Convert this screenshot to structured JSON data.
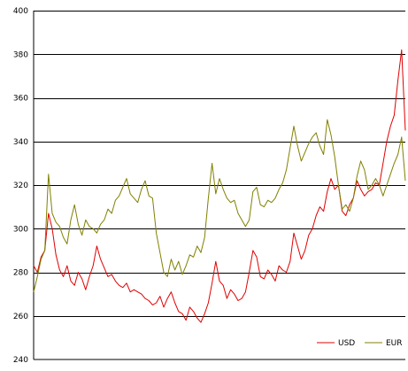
{
  "chart_data": {
    "type": "line",
    "title": "",
    "xlabel": "",
    "ylabel": "",
    "ylim": [
      240,
      400
    ],
    "yticks": [
      240,
      260,
      280,
      300,
      320,
      340,
      360,
      380,
      400
    ],
    "yticks_text": [
      "240",
      "260",
      "280",
      "300",
      "320",
      "340",
      "360",
      "380",
      "400"
    ],
    "grid": "horizontal",
    "legend_position": "bottom-right",
    "x_range": [
      0,
      100
    ],
    "series": [
      {
        "name": "USD",
        "color": "#e00000",
        "points": [
          [
            0,
            283
          ],
          [
            1,
            280
          ],
          [
            2,
            287
          ],
          [
            3,
            290
          ],
          [
            4,
            307
          ],
          [
            5,
            300
          ],
          [
            6,
            288
          ],
          [
            7,
            281
          ],
          [
            8,
            278
          ],
          [
            9,
            283
          ],
          [
            10,
            276
          ],
          [
            11,
            274
          ],
          [
            12,
            280
          ],
          [
            13,
            277
          ],
          [
            14,
            272
          ],
          [
            15,
            278
          ],
          [
            16,
            283
          ],
          [
            17,
            292
          ],
          [
            18,
            286
          ],
          [
            19,
            282
          ],
          [
            20,
            278
          ],
          [
            21,
            279
          ],
          [
            22,
            276
          ],
          [
            23,
            274
          ],
          [
            24,
            273
          ],
          [
            25,
            275
          ],
          [
            26,
            271
          ],
          [
            27,
            272
          ],
          [
            28,
            271
          ],
          [
            29,
            270
          ],
          [
            30,
            268
          ],
          [
            31,
            267
          ],
          [
            32,
            265
          ],
          [
            33,
            266
          ],
          [
            34,
            269
          ],
          [
            35,
            264
          ],
          [
            36,
            268
          ],
          [
            37,
            271
          ],
          [
            38,
            266
          ],
          [
            39,
            262
          ],
          [
            40,
            261
          ],
          [
            41,
            258
          ],
          [
            42,
            264
          ],
          [
            43,
            262
          ],
          [
            44,
            259
          ],
          [
            45,
            257
          ],
          [
            46,
            261
          ],
          [
            47,
            266
          ],
          [
            48,
            275
          ],
          [
            49,
            285
          ],
          [
            50,
            276
          ],
          [
            51,
            274
          ],
          [
            52,
            268
          ],
          [
            53,
            272
          ],
          [
            54,
            270
          ],
          [
            55,
            267
          ],
          [
            56,
            268
          ],
          [
            57,
            271
          ],
          [
            58,
            280
          ],
          [
            59,
            290
          ],
          [
            60,
            287
          ],
          [
            61,
            278
          ],
          [
            62,
            277
          ],
          [
            63,
            281
          ],
          [
            64,
            279
          ],
          [
            65,
            276
          ],
          [
            66,
            283
          ],
          [
            67,
            281
          ],
          [
            68,
            280
          ],
          [
            69,
            285
          ],
          [
            70,
            298
          ],
          [
            71,
            292
          ],
          [
            72,
            286
          ],
          [
            73,
            290
          ],
          [
            74,
            297
          ],
          [
            75,
            300
          ],
          [
            76,
            306
          ],
          [
            77,
            310
          ],
          [
            78,
            308
          ],
          [
            79,
            317
          ],
          [
            80,
            323
          ],
          [
            81,
            318
          ],
          [
            82,
            320
          ],
          [
            83,
            308
          ],
          [
            84,
            306
          ],
          [
            85,
            311
          ],
          [
            86,
            314
          ],
          [
            87,
            322
          ],
          [
            88,
            318
          ],
          [
            89,
            315
          ],
          [
            90,
            317
          ],
          [
            91,
            318
          ],
          [
            92,
            321
          ],
          [
            93,
            320
          ],
          [
            94,
            330
          ],
          [
            95,
            340
          ],
          [
            96,
            347
          ],
          [
            97,
            352
          ],
          [
            98,
            368
          ],
          [
            99,
            382
          ],
          [
            100,
            345
          ]
        ]
      },
      {
        "name": "EUR",
        "color": "#808000",
        "points": [
          [
            0,
            271
          ],
          [
            1,
            278
          ],
          [
            2,
            286
          ],
          [
            3,
            290
          ],
          [
            4,
            325
          ],
          [
            5,
            307
          ],
          [
            6,
            303
          ],
          [
            7,
            301
          ],
          [
            8,
            296
          ],
          [
            9,
            293
          ],
          [
            10,
            304
          ],
          [
            11,
            311
          ],
          [
            12,
            302
          ],
          [
            13,
            297
          ],
          [
            14,
            304
          ],
          [
            15,
            301
          ],
          [
            16,
            300
          ],
          [
            17,
            298
          ],
          [
            18,
            302
          ],
          [
            19,
            304
          ],
          [
            20,
            309
          ],
          [
            21,
            307
          ],
          [
            22,
            313
          ],
          [
            23,
            315
          ],
          [
            24,
            319
          ],
          [
            25,
            323
          ],
          [
            26,
            316
          ],
          [
            27,
            314
          ],
          [
            28,
            312
          ],
          [
            29,
            318
          ],
          [
            30,
            322
          ],
          [
            31,
            315
          ],
          [
            32,
            314
          ],
          [
            33,
            298
          ],
          [
            34,
            289
          ],
          [
            35,
            280
          ],
          [
            36,
            278
          ],
          [
            37,
            286
          ],
          [
            38,
            281
          ],
          [
            39,
            285
          ],
          [
            40,
            279
          ],
          [
            41,
            283
          ],
          [
            42,
            288
          ],
          [
            43,
            287
          ],
          [
            44,
            292
          ],
          [
            45,
            289
          ],
          [
            46,
            296
          ],
          [
            47,
            314
          ],
          [
            48,
            330
          ],
          [
            49,
            316
          ],
          [
            50,
            323
          ],
          [
            51,
            318
          ],
          [
            52,
            314
          ],
          [
            53,
            312
          ],
          [
            54,
            313
          ],
          [
            55,
            307
          ],
          [
            56,
            304
          ],
          [
            57,
            301
          ],
          [
            58,
            304
          ],
          [
            59,
            317
          ],
          [
            60,
            319
          ],
          [
            61,
            311
          ],
          [
            62,
            310
          ],
          [
            63,
            313
          ],
          [
            64,
            312
          ],
          [
            65,
            314
          ],
          [
            66,
            318
          ],
          [
            67,
            321
          ],
          [
            68,
            327
          ],
          [
            69,
            337
          ],
          [
            70,
            347
          ],
          [
            71,
            338
          ],
          [
            72,
            331
          ],
          [
            73,
            335
          ],
          [
            74,
            339
          ],
          [
            75,
            342
          ],
          [
            76,
            344
          ],
          [
            77,
            338
          ],
          [
            78,
            334
          ],
          [
            79,
            350
          ],
          [
            80,
            343
          ],
          [
            81,
            333
          ],
          [
            82,
            320
          ],
          [
            83,
            309
          ],
          [
            84,
            311
          ],
          [
            85,
            308
          ],
          [
            86,
            314
          ],
          [
            87,
            324
          ],
          [
            88,
            331
          ],
          [
            89,
            327
          ],
          [
            90,
            318
          ],
          [
            91,
            320
          ],
          [
            92,
            323
          ],
          [
            93,
            320
          ],
          [
            94,
            315
          ],
          [
            95,
            320
          ],
          [
            96,
            325
          ],
          [
            97,
            330
          ],
          [
            98,
            334
          ],
          [
            99,
            342
          ],
          [
            100,
            322
          ]
        ]
      }
    ]
  }
}
